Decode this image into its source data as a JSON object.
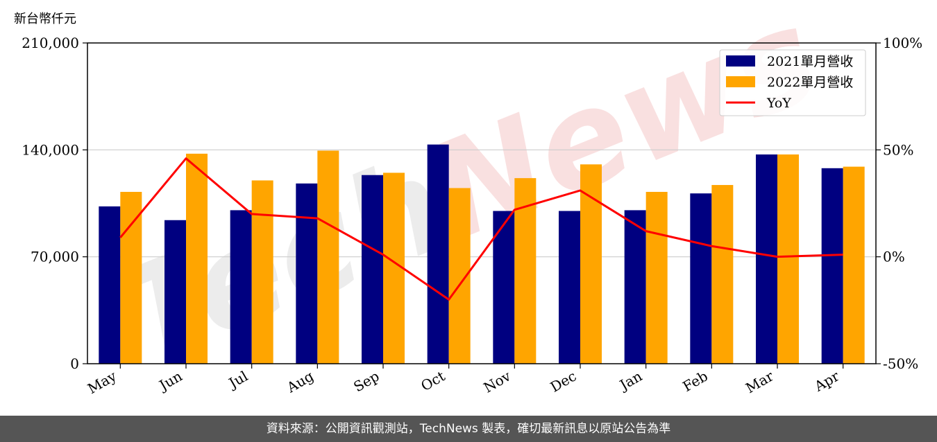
{
  "footer": {
    "text": "資料來源：公開資訊觀測站，TechNews 製表，確切最新訊息以原站公告為準"
  },
  "watermark": {
    "text": "TechNews"
  },
  "colors": {
    "series_2021": "#000080",
    "series_2022": "#FFA500",
    "yoy": "#FF0000",
    "grid": "#cccccc",
    "watermark_gray": "#dddddd",
    "watermark_red": "#f4c6c6"
  },
  "chart_data": {
    "type": "bar",
    "unit_label": "新台幣仟元",
    "categories": [
      "May",
      "Jun",
      "Jul",
      "Aug",
      "Sep",
      "Oct",
      "Nov",
      "Dec",
      "Jan",
      "Feb",
      "Mar",
      "Apr"
    ],
    "series": [
      {
        "name": "2021單月營收",
        "type": "bar",
        "axis": "left",
        "values": [
          103000,
          94000,
          100500,
          118000,
          123500,
          143500,
          100000,
          100000,
          100500,
          111500,
          137000,
          128000
        ]
      },
      {
        "name": "2022單月營收",
        "type": "bar",
        "axis": "left",
        "values": [
          112500,
          137500,
          120000,
          139500,
          125000,
          115000,
          121500,
          130500,
          112500,
          117000,
          137000,
          129000
        ]
      },
      {
        "name": "YoY",
        "type": "line",
        "axis": "right",
        "values": [
          9,
          46,
          20,
          18,
          1,
          -20,
          22,
          31,
          12,
          5,
          0,
          1
        ]
      }
    ],
    "left_axis": {
      "ylim": [
        0,
        210000
      ],
      "ticks": [
        0,
        70000,
        140000,
        210000
      ],
      "tick_labels": [
        "0",
        "70,000",
        "140,000",
        "210,000"
      ]
    },
    "right_axis": {
      "ylim": [
        -50,
        100
      ],
      "ticks": [
        -50,
        0,
        50,
        100
      ],
      "tick_labels": [
        "-50%",
        "0%",
        "50%",
        "100%"
      ]
    },
    "grid": "horizontal",
    "legend": "top-right"
  }
}
